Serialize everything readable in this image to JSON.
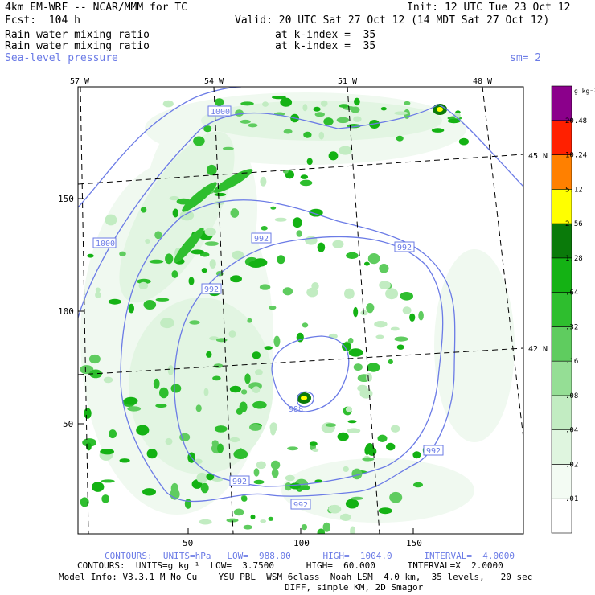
{
  "header": {
    "model_title": "4km EM-WRF -- NCAR/MMM for TC",
    "init": "Init: 12 UTC Tue 23 Oct 12",
    "forecast": "Fcst:  104 h",
    "valid": "Valid: 20 UTC Sat 27 Oct 12 (14 MDT Sat 27 Oct 12)",
    "field1_name": "Rain water mixing ratio",
    "field1_level": "at k-index =  35",
    "field2_name": "Rain water mixing ratio",
    "field2_level": "at k-index =  35",
    "field3_name": "Sea-level pressure",
    "smoothing": "sm= 2"
  },
  "map": {
    "lon_labels": [
      "57 W",
      "54 W",
      "51 W",
      "48 W"
    ],
    "lat_labels": [
      "45 N",
      "42 N"
    ],
    "y_grid_labels": [
      "150",
      "100",
      "50"
    ],
    "x_grid_labels": [
      "50",
      "100",
      "150"
    ],
    "contour_labels": [
      "1000",
      "1000",
      "992",
      "992",
      "992",
      "992",
      "992",
      "992",
      "988"
    ]
  },
  "legend": {
    "units": "g kg⁻¹",
    "levels": [
      "20.48",
      "10.24",
      "5.12",
      "2.56",
      "1.28",
      ".64",
      ".32",
      ".16",
      ".08",
      ".04",
      ".02",
      ".01"
    ],
    "colors": [
      "#ffffff",
      "#f3fbf3",
      "#dff5df",
      "#c2ecc2",
      "#95de95",
      "#5fcc5f",
      "#2ebe2e",
      "#14b214",
      "#0a7a0a",
      "#ffff00",
      "#ff8000",
      "#ff2000",
      "#8b008b"
    ]
  },
  "footer": {
    "contours1": "CONTOURS:  UNITS=hPa   LOW=  988.00      HIGH=  1004.0      INTERVAL=  4.0000",
    "contours2": "CONTOURS:  UNITS=g kg⁻¹  LOW=  3.7500      HIGH=  60.000      INTERVAL=X  2.0000",
    "model_info": "Model Info: V3.3.1 M No Cu    YSU PBL  WSM 6class  Noah LSM  4.0 km,  35 levels,   20 sec",
    "diff_info": "DIFF, simple KM, 2D Smagor"
  },
  "colors": {
    "contour": "#6b7be6",
    "rain_light": "#c2ecc2",
    "rain_mid": "#5fcc5f",
    "rain_heavy": "#0a7a0a"
  }
}
